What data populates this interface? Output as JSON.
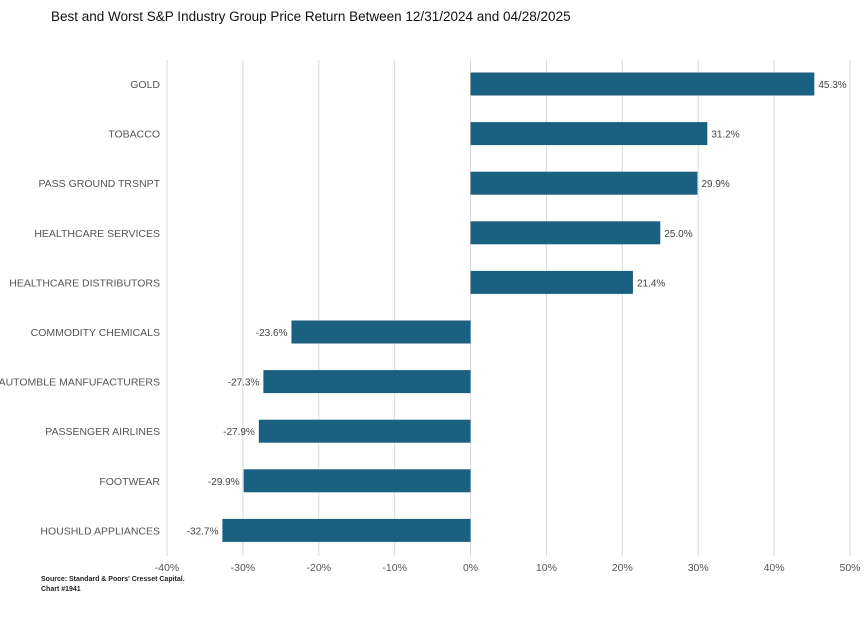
{
  "chart_data": {
    "type": "bar",
    "orientation": "horizontal",
    "title": "Best and Worst S&P Industry Group Price Return Between 12/31/2024 and 04/28/2025",
    "categories": [
      "GOLD",
      "TOBACCO",
      "PASS GROUND TRSNPT",
      "HEALTHCARE SERVICES",
      "HEALTHCARE DISTRIBUTORS",
      "COMMODITY CHEMICALS",
      "AUTOMBLE MANFUFACTURERS",
      "PASSENGER AIRLINES",
      "FOOTWEAR",
      "HOUSHLD APPLIANCES"
    ],
    "values": [
      45.3,
      31.2,
      29.9,
      25.0,
      21.4,
      -23.6,
      -27.3,
      -27.9,
      -29.9,
      -32.7
    ],
    "data_labels": [
      "45.3%",
      "31.2%",
      "29.9%",
      "25.0%",
      "21.4%",
      "-23.6%",
      "-27.3%",
      "-27.9%",
      "-29.9%",
      "-32.7%"
    ],
    "xlim": [
      -40,
      50
    ],
    "xticks": [
      -40,
      -30,
      -20,
      -10,
      0,
      10,
      20,
      30,
      40,
      50
    ],
    "xtick_labels": [
      "-40%",
      "-30%",
      "-20%",
      "-10%",
      "0%",
      "10%",
      "20%",
      "30%",
      "40%",
      "50%"
    ],
    "grid": "vertical",
    "bar_color": "#1a6080",
    "grid_color": "#d9d9d9"
  },
  "source": {
    "line1": "Source: Standard & Poors' Cresset Capital.",
    "line2": "Chart #1941"
  }
}
